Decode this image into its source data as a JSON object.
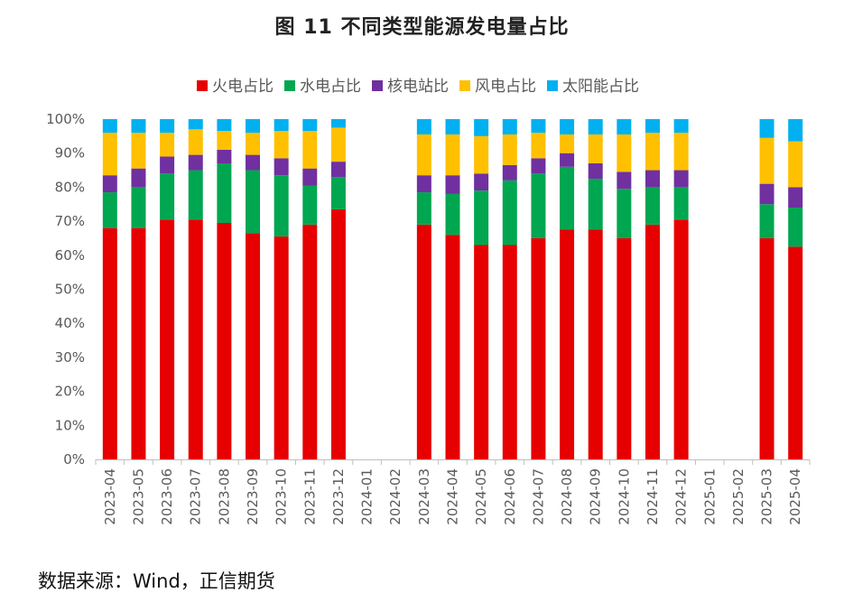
{
  "title": "图 11    不同类型能源发电量占比",
  "source": "数据来源：Wind，正信期货",
  "colors": {
    "thermal": "#e60000",
    "hydro": "#00a650",
    "nuclear": "#7030a0",
    "wind": "#ffc000",
    "solar": "#00b0f0"
  },
  "chart_data": {
    "type": "bar",
    "stacked": true,
    "categories": [
      "2023-04",
      "2023-05",
      "2023-06",
      "2023-07",
      "2023-08",
      "2023-09",
      "2023-10",
      "2023-11",
      "2023-12",
      "2024-01",
      "2024-02",
      "2024-03",
      "2024-04",
      "2024-05",
      "2024-06",
      "2024-07",
      "2024-08",
      "2024-09",
      "2024-10",
      "2024-11",
      "2024-12",
      "2025-01",
      "2025-02",
      "2025-03",
      "2025-04"
    ],
    "series": [
      {
        "name": "火电占比",
        "color_key": "thermal",
        "values": [
          68.0,
          68.0,
          70.5,
          70.5,
          69.5,
          66.5,
          65.5,
          69.0,
          73.5,
          null,
          null,
          69.0,
          66.0,
          63.0,
          63.0,
          65.0,
          67.5,
          67.5,
          65.0,
          69.0,
          70.5,
          null,
          null,
          65.0,
          62.5
        ]
      },
      {
        "name": "水电占比",
        "color_key": "hydro",
        "values": [
          10.5,
          12.0,
          13.5,
          14.5,
          17.5,
          18.5,
          18.0,
          11.5,
          9.5,
          null,
          null,
          9.5,
          12.0,
          16.0,
          19.0,
          19.0,
          18.5,
          15.0,
          14.5,
          11.0,
          9.5,
          null,
          null,
          10.0,
          11.5
        ]
      },
      {
        "name": "核电站比",
        "color_key": "nuclear",
        "values": [
          5.0,
          5.5,
          5.0,
          4.5,
          4.0,
          4.5,
          5.0,
          5.0,
          4.5,
          null,
          null,
          5.0,
          5.5,
          5.0,
          4.5,
          4.5,
          4.0,
          4.5,
          5.0,
          5.0,
          5.0,
          null,
          null,
          6.0,
          6.0
        ]
      },
      {
        "name": "风电占比",
        "color_key": "wind",
        "values": [
          12.5,
          10.5,
          7.0,
          7.5,
          5.5,
          6.5,
          8.0,
          11.0,
          10.0,
          null,
          null,
          12.0,
          12.0,
          11.0,
          9.0,
          7.5,
          5.5,
          8.5,
          11.0,
          11.0,
          11.0,
          null,
          null,
          13.5,
          13.5
        ]
      },
      {
        "name": "太阳能占比",
        "color_key": "solar",
        "values": [
          4.0,
          4.0,
          4.0,
          3.0,
          3.5,
          4.0,
          3.5,
          3.5,
          2.5,
          null,
          null,
          4.5,
          4.5,
          5.0,
          4.5,
          4.0,
          4.5,
          4.5,
          4.5,
          4.0,
          4.0,
          null,
          null,
          5.5,
          6.5
        ]
      }
    ],
    "y_ticks": [
      "0%",
      "10%",
      "20%",
      "30%",
      "40%",
      "50%",
      "60%",
      "70%",
      "80%",
      "90%",
      "100%"
    ],
    "ylim": [
      0,
      100
    ],
    "xlabel": "",
    "ylabel": "",
    "legend_position": "top",
    "grid": false
  }
}
